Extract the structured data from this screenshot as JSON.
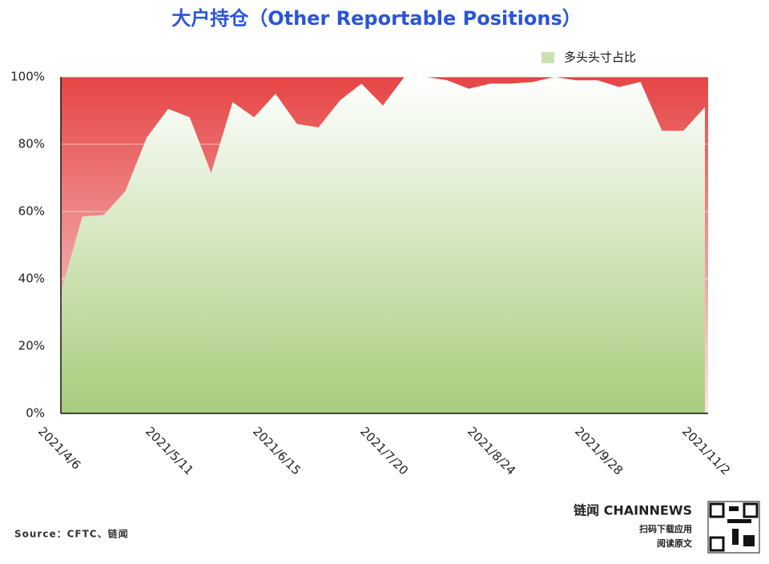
{
  "chart_data": {
    "type": "area",
    "title": "大户持仓（Other Reportable Positions）",
    "categories": [
      "2021/4/6",
      null,
      null,
      null,
      null,
      "2021/5/11",
      null,
      null,
      null,
      null,
      "2021/6/15",
      null,
      null,
      null,
      null,
      "2021/7/20",
      null,
      null,
      null,
      null,
      "2021/8/24",
      null,
      null,
      null,
      null,
      "2021/9/28",
      null,
      null,
      null,
      null,
      "2021/11/2"
    ],
    "series": [
      {
        "name": "多头头寸占比",
        "color": "#a8cc7c",
        "values": [
          36,
          58.5,
          59,
          66,
          82,
          90.5,
          88,
          71.5,
          92.5,
          88,
          95,
          86,
          85,
          93,
          98,
          91.5,
          100,
          100,
          99,
          96.5,
          98,
          98,
          98.5,
          100,
          99,
          99,
          97,
          98.5,
          84,
          84,
          91
        ]
      }
    ],
    "rest_color": "#e64545",
    "ylim": [
      0,
      100
    ],
    "yticks": [
      {
        "value": 0,
        "label": "0%"
      },
      {
        "value": 20,
        "label": "20%"
      },
      {
        "value": 40,
        "label": "40%"
      },
      {
        "value": 60,
        "label": "60%"
      },
      {
        "value": 80,
        "label": "80%"
      },
      {
        "value": 100,
        "label": "100%"
      }
    ],
    "grid": true,
    "legend": "top-right",
    "source": "Source：CFTC、链闻",
    "brand": "链闻 CHAINNEWS",
    "qr_caption": [
      "扫码下载应用",
      "阅读原文"
    ]
  }
}
